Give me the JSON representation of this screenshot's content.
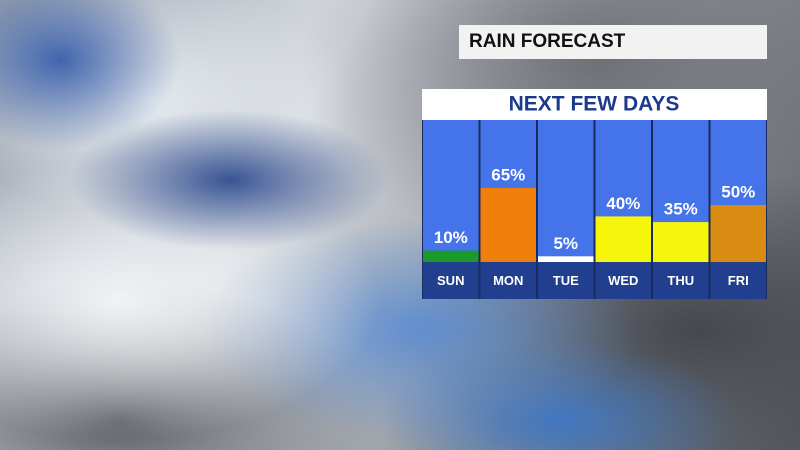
{
  "header": {
    "title": "RAIN FORECAST"
  },
  "chart_data": {
    "type": "bar",
    "title": "NEXT FEW DAYS",
    "categories": [
      "SUN",
      "MON",
      "TUE",
      "WED",
      "THU",
      "FRI"
    ],
    "values": [
      10,
      65,
      5,
      40,
      35,
      50
    ],
    "value_labels": [
      "10%",
      "65%",
      "5%",
      "40%",
      "35%",
      "50%"
    ],
    "colors": [
      "#1b9a2b",
      "#f07f0c",
      "#ffffff",
      "#f6f60c",
      "#f6f60c",
      "#d98c12"
    ]
  }
}
